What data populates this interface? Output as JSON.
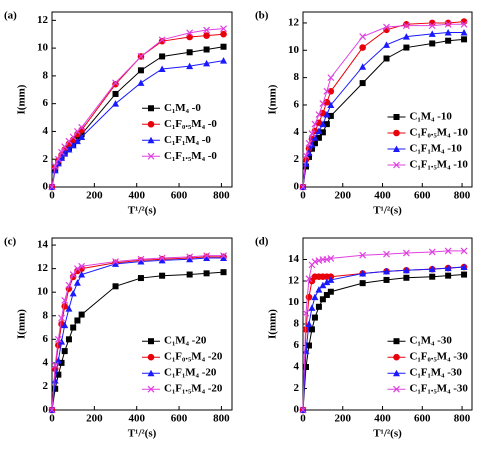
{
  "chart_data": [
    {
      "type": "line",
      "label": "(a)",
      "xlabel": "T¹/²(s)",
      "ylabel": "I(mm)",
      "x": [
        0,
        15,
        30,
        45,
        60,
        80,
        100,
        120,
        140,
        300,
        420,
        520,
        650,
        730,
        810
      ],
      "xlim": [
        0,
        850
      ],
      "xticks": [
        0,
        200,
        400,
        600,
        800
      ],
      "ylim": [
        0,
        12.6
      ],
      "yticks": [
        0,
        2,
        4,
        6,
        8,
        10,
        12
      ],
      "legend": "right",
      "series": [
        {
          "name": "C₁M₄ -0",
          "color": "#000000",
          "marker": "square",
          "values": [
            0,
            1.3,
            1.8,
            2.2,
            2.5,
            2.8,
            3.1,
            3.5,
            3.8,
            6.7,
            8.4,
            9.4,
            9.7,
            9.9,
            10.1
          ]
        },
        {
          "name": "C₁F₀.₅M₄ -0",
          "color": "#e8000b",
          "marker": "circle",
          "values": [
            0,
            1.4,
            1.9,
            2.3,
            2.7,
            3.1,
            3.4,
            3.8,
            4.1,
            7.4,
            9.4,
            10.5,
            10.8,
            10.9,
            11.0
          ]
        },
        {
          "name": "C₁F₁M₄ -0",
          "color": "#1a1aff",
          "marker": "triangle",
          "values": [
            0,
            1.2,
            1.7,
            2.1,
            2.4,
            2.7,
            3.0,
            3.3,
            3.6,
            6.0,
            7.5,
            8.5,
            8.7,
            8.9,
            9.1
          ]
        },
        {
          "name": "C₁F₁.₅M₄ -0",
          "color": "#e040e0",
          "marker": "cross",
          "values": [
            0,
            1.5,
            2.0,
            2.5,
            2.9,
            3.3,
            3.6,
            4.0,
            4.3,
            7.5,
            9.4,
            10.6,
            11.1,
            11.3,
            11.4
          ]
        }
      ]
    },
    {
      "type": "line",
      "label": "(b)",
      "xlabel": "T¹/²(s)",
      "ylabel": "I(mm)",
      "x": [
        0,
        15,
        30,
        45,
        60,
        80,
        100,
        120,
        140,
        300,
        420,
        520,
        650,
        730,
        810
      ],
      "xlim": [
        0,
        850
      ],
      "xticks": [
        0,
        200,
        400,
        600,
        800
      ],
      "ylim": [
        0,
        12.8
      ],
      "yticks": [
        0,
        2,
        4,
        6,
        8,
        10,
        12
      ],
      "legend": "lower right",
      "series": [
        {
          "name": "C₁M₄ -10",
          "color": "#000000",
          "marker": "square",
          "values": [
            0,
            1.5,
            2.2,
            2.8,
            3.2,
            3.6,
            4.0,
            4.6,
            5.2,
            7.6,
            9.4,
            10.2,
            10.5,
            10.7,
            10.8
          ]
        },
        {
          "name": "C₁F₀.₅M₄ -10",
          "color": "#e8000b",
          "marker": "circle",
          "values": [
            0,
            2.0,
            2.8,
            3.5,
            4.1,
            4.7,
            5.4,
            6.2,
            7.0,
            10.2,
            11.5,
            11.9,
            12.0,
            12.0,
            12.1
          ]
        },
        {
          "name": "C₁F₁M₄ -10",
          "color": "#1a1aff",
          "marker": "triangle",
          "values": [
            0,
            1.7,
            2.5,
            3.1,
            3.6,
            4.1,
            4.6,
            5.3,
            6.0,
            8.8,
            10.4,
            11.0,
            11.2,
            11.3,
            11.3
          ]
        },
        {
          "name": "C₁F₁.₅M₄ -10",
          "color": "#e040e0",
          "marker": "cross",
          "values": [
            0,
            2.3,
            3.2,
            3.9,
            4.6,
            5.3,
            6.1,
            7.0,
            8.0,
            11.0,
            11.7,
            11.8,
            11.8,
            11.9,
            11.9
          ]
        }
      ]
    },
    {
      "type": "line",
      "label": "(c)",
      "xlabel": "T¹/²(s)",
      "ylabel": "I(mm)",
      "x": [
        0,
        15,
        30,
        45,
        60,
        80,
        100,
        120,
        140,
        300,
        420,
        520,
        650,
        730,
        810
      ],
      "xlim": [
        0,
        850
      ],
      "xticks": [
        0,
        200,
        400,
        600,
        800
      ],
      "ylim": [
        0,
        14.6
      ],
      "yticks": [
        0,
        2,
        4,
        6,
        8,
        10,
        12,
        14
      ],
      "legend": "lower right",
      "series": [
        {
          "name": "C₁M₄ -20",
          "color": "#000000",
          "marker": "square",
          "values": [
            0,
            1.8,
            3.0,
            4.0,
            5.0,
            6.0,
            7.0,
            7.6,
            8.1,
            10.5,
            11.2,
            11.4,
            11.5,
            11.6,
            11.7
          ]
        },
        {
          "name": "C₁F₀.₅M₄ -20",
          "color": "#e8000b",
          "marker": "circle",
          "values": [
            0,
            3.5,
            5.5,
            7.3,
            8.8,
            10.3,
            11.3,
            11.8,
            12.0,
            12.5,
            12.7,
            12.8,
            12.9,
            13.0,
            13.0
          ]
        },
        {
          "name": "C₁F₁M₄ -20",
          "color": "#1a1aff",
          "marker": "triangle",
          "values": [
            0,
            2.5,
            4.2,
            5.8,
            7.2,
            8.6,
            9.9,
            10.8,
            11.5,
            12.4,
            12.6,
            12.7,
            12.8,
            12.9,
            12.9
          ]
        },
        {
          "name": "C₁F₁.₅M₄ -20",
          "color": "#e040e0",
          "marker": "cross",
          "values": [
            0,
            3.8,
            6.0,
            7.8,
            9.3,
            10.6,
            11.5,
            12.0,
            12.2,
            12.6,
            12.8,
            12.9,
            13.0,
            13.1,
            13.1
          ]
        }
      ]
    },
    {
      "type": "line",
      "label": "(d)",
      "xlabel": "T¹/²(s)",
      "ylabel": "I(mm)",
      "x": [
        0,
        15,
        30,
        45,
        60,
        80,
        100,
        120,
        140,
        300,
        420,
        520,
        650,
        730,
        810
      ],
      "xlim": [
        0,
        850
      ],
      "xticks": [
        0,
        200,
        400,
        600,
        800
      ],
      "ylim": [
        0,
        16
      ],
      "yticks": [
        0,
        2,
        4,
        6,
        8,
        10,
        12,
        14
      ],
      "legend": "lower right",
      "series": [
        {
          "name": "C₁M₄ -30",
          "color": "#000000",
          "marker": "square",
          "values": [
            0,
            4.0,
            6.0,
            7.5,
            8.6,
            9.6,
            10.3,
            10.7,
            11.0,
            11.8,
            12.1,
            12.3,
            12.4,
            12.5,
            12.6
          ]
        },
        {
          "name": "C₁F₀.₅M₄ -30",
          "color": "#e8000b",
          "marker": "circle",
          "values": [
            0,
            7.5,
            10.5,
            12.0,
            12.4,
            12.4,
            12.4,
            12.4,
            12.4,
            12.7,
            12.9,
            13.0,
            13.1,
            13.2,
            13.3
          ]
        },
        {
          "name": "C₁F₁M₄ -30",
          "color": "#1a1aff",
          "marker": "triangle",
          "values": [
            0,
            5.5,
            8.0,
            9.5,
            10.5,
            11.2,
            11.6,
            11.9,
            12.1,
            12.7,
            12.9,
            13.0,
            13.1,
            13.2,
            13.3
          ]
        },
        {
          "name": "C₁F₁.₅M₄ -30",
          "color": "#e040e0",
          "marker": "cross",
          "values": [
            0,
            9.0,
            12.2,
            13.5,
            13.8,
            13.9,
            14.0,
            14.0,
            14.1,
            14.4,
            14.5,
            14.6,
            14.7,
            14.8,
            14.8
          ]
        }
      ]
    }
  ]
}
